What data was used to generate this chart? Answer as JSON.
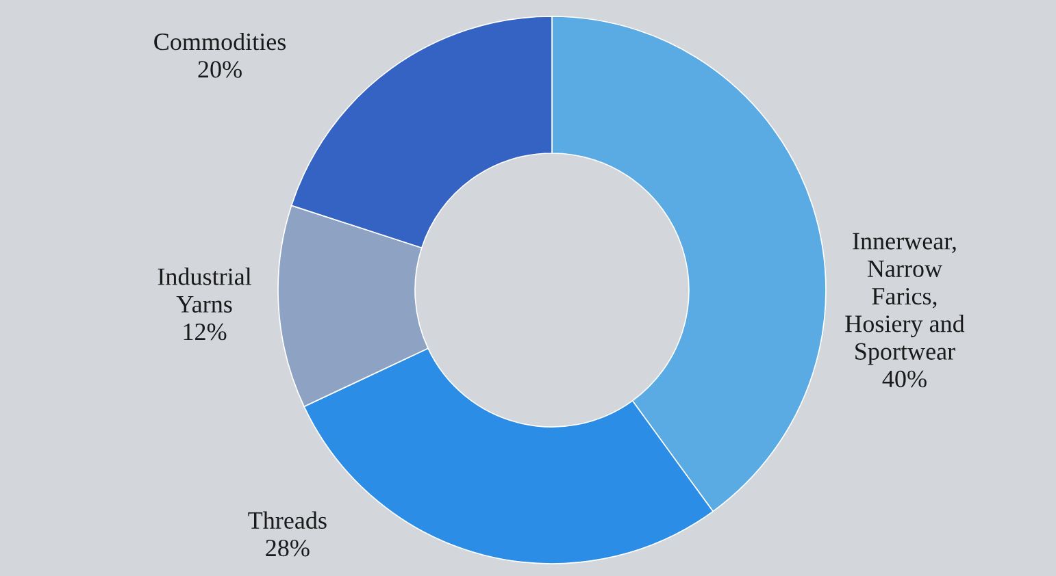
{
  "chart_data": {
    "type": "donut",
    "categories": [
      "Innerwear,\nNarrow\nFarics,\nHosiery and\nSportwear",
      "Threads",
      "Industrial\nYarns",
      "Commodities"
    ],
    "values": [
      40,
      28,
      12,
      20
    ],
    "value_labels": [
      "40%",
      "28%",
      "12%",
      "20%"
    ],
    "colors": [
      "#5aaae4",
      "#2b8de6",
      "#8ea3c4",
      "#3563c4"
    ],
    "legend": false
  }
}
